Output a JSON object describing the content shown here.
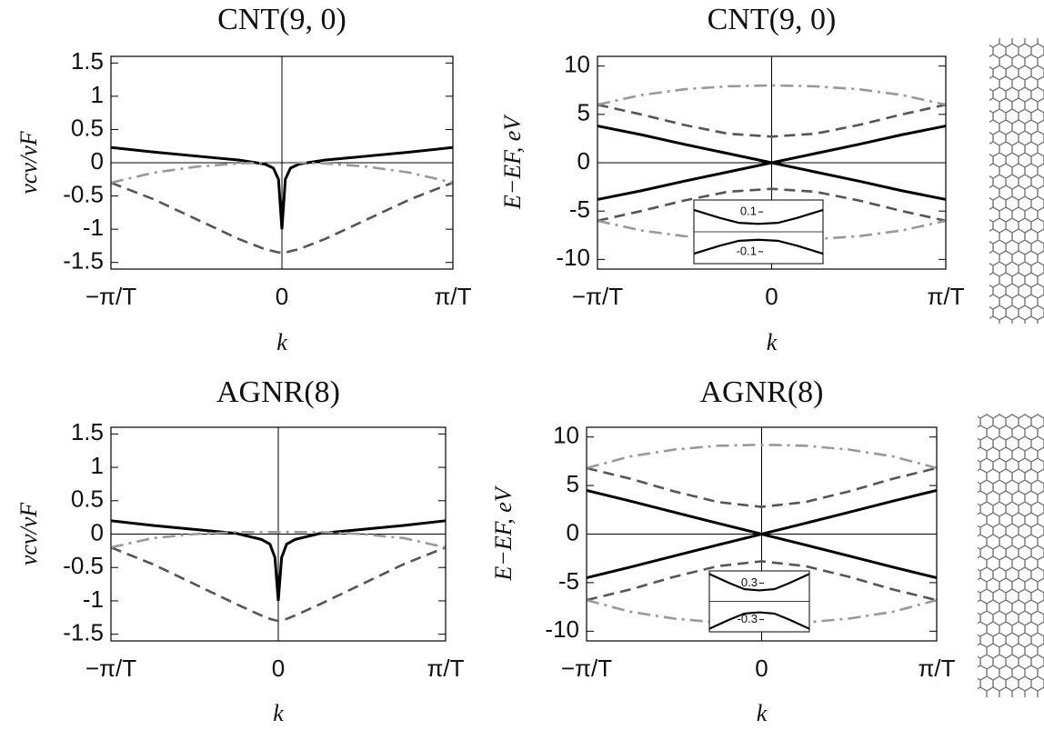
{
  "chart_data": [
    {
      "type": "line",
      "title": "CNT(9, 0)",
      "xlabel": "k",
      "ylabel": "vcv/vF",
      "xlim": [
        -1,
        1
      ],
      "xticks": [
        {
          "value": -1,
          "label": "−π/T"
        },
        0,
        {
          "value": 1,
          "label": "π/T"
        }
      ],
      "ylim": [
        -1.6,
        1.6
      ],
      "yticks": [
        -1.5,
        -1,
        -0.5,
        0,
        0.5,
        1,
        1.5
      ],
      "x": [
        -1,
        -0.75,
        -0.5,
        -0.25,
        -0.1,
        -0.05,
        -0.02,
        0,
        0.02,
        0.05,
        0.1,
        0.25,
        0.5,
        0.75,
        1
      ],
      "series": [
        {
          "color": "#000000",
          "dash": "solid",
          "values": [
            0.23,
            0.16,
            0.1,
            0.04,
            -0.02,
            -0.08,
            -0.25,
            -1,
            -0.25,
            -0.08,
            -0.02,
            0.04,
            0.1,
            0.16,
            0.23
          ]
        },
        {
          "color": "#555555",
          "dash": "dashed",
          "values": [
            -0.3,
            -0.55,
            -0.85,
            -1.15,
            -1.3,
            -1.33,
            -1.35,
            -1.35,
            -1.35,
            -1.33,
            -1.3,
            -1.15,
            -0.85,
            -0.55,
            -0.3
          ]
        },
        {
          "color": "#999999",
          "dash": "dashdot",
          "values": [
            -0.3,
            -0.15,
            -0.06,
            -0.01,
            0,
            0,
            0,
            0,
            0,
            0,
            0,
            -0.01,
            -0.06,
            -0.15,
            -0.3
          ]
        }
      ]
    },
    {
      "type": "line",
      "title": "CNT(9, 0)",
      "xlabel": "k",
      "ylabel": "E−EF, eV",
      "xlim": [
        -1,
        1
      ],
      "xticks": [
        {
          "value": -1,
          "label": "−π/T"
        },
        0,
        {
          "value": 1,
          "label": "π/T"
        }
      ],
      "ylim": [
        -11,
        11
      ],
      "yticks": [
        -10,
        -5,
        0,
        5,
        10
      ],
      "x": [
        -1,
        -0.75,
        -0.5,
        -0.25,
        0,
        0.25,
        0.5,
        0.75,
        1
      ],
      "series": [
        {
          "color": "#000000",
          "dash": "solid",
          "values": [
            3.8,
            2.9,
            1.9,
            0.95,
            0,
            0.95,
            1.9,
            2.9,
            3.8
          ]
        },
        {
          "color": "#000000",
          "dash": "solid",
          "values": [
            -3.8,
            -2.9,
            -1.9,
            -0.95,
            0,
            -0.95,
            -1.9,
            -2.9,
            -3.8
          ]
        },
        {
          "color": "#555555",
          "dash": "dashed",
          "values": [
            6,
            5,
            3.9,
            3,
            2.7,
            3,
            3.9,
            5,
            6
          ]
        },
        {
          "color": "#555555",
          "dash": "dashed",
          "values": [
            -6,
            -5,
            -3.9,
            -3,
            -2.7,
            -3,
            -3.9,
            -5,
            -6
          ]
        },
        {
          "color": "#999999",
          "dash": "dashdot",
          "values": [
            6,
            7,
            7.6,
            7.9,
            8,
            7.9,
            7.6,
            7,
            6
          ]
        },
        {
          "color": "#999999",
          "dash": "dashdot",
          "values": [
            -6,
            -7,
            -7.6,
            -7.9,
            -8,
            -7.9,
            -7.6,
            -7,
            -6
          ]
        }
      ],
      "inset": {
        "xlim": [
          -1,
          1
        ],
        "ylim": [
          -0.16,
          0.16
        ],
        "yticks": [
          -0.1,
          0.1
        ],
        "x": [
          -1,
          -0.6,
          -0.3,
          0,
          0.3,
          0.6,
          1
        ],
        "series": [
          {
            "color": "#000000",
            "values": [
              0.11,
              0.07,
              0.045,
              0.04,
              0.045,
              0.07,
              0.11
            ]
          },
          {
            "color": "#000000",
            "values": [
              -0.11,
              -0.07,
              -0.045,
              -0.04,
              -0.045,
              -0.07,
              -0.11
            ]
          }
        ]
      }
    },
    {
      "type": "line",
      "title": "AGNR(8)",
      "xlabel": "k",
      "ylabel": "vcv/vF",
      "xlim": [
        -1,
        1
      ],
      "xticks": [
        {
          "value": -1,
          "label": "−π/T"
        },
        0,
        {
          "value": 1,
          "label": "π/T"
        }
      ],
      "ylim": [
        -1.6,
        1.6
      ],
      "yticks": [
        -1.5,
        -1,
        -0.5,
        0,
        0.5,
        1,
        1.5
      ],
      "x": [
        -1,
        -0.75,
        -0.5,
        -0.25,
        -0.1,
        -0.05,
        -0.02,
        0,
        0.02,
        0.05,
        0.1,
        0.25,
        0.5,
        0.75,
        1
      ],
      "series": [
        {
          "color": "#000000",
          "dash": "solid",
          "values": [
            0.2,
            0.13,
            0.07,
            0.01,
            -0.08,
            -0.15,
            -0.35,
            -1,
            -0.35,
            -0.15,
            -0.08,
            0.01,
            0.07,
            0.13,
            0.2
          ]
        },
        {
          "color": "#555555",
          "dash": "dashed",
          "values": [
            -0.2,
            -0.45,
            -0.75,
            -1.05,
            -1.22,
            -1.27,
            -1.29,
            -1.3,
            -1.29,
            -1.27,
            -1.22,
            -1.05,
            -0.75,
            -0.45,
            -0.2
          ]
        },
        {
          "color": "#999999",
          "dash": "dashdot",
          "values": [
            -0.2,
            -0.06,
            0,
            0.03,
            0.03,
            0.03,
            0.03,
            0.03,
            0.03,
            0.03,
            0.03,
            0.03,
            0,
            -0.06,
            -0.2
          ]
        }
      ]
    },
    {
      "type": "line",
      "title": "AGNR(8)",
      "xlabel": "k",
      "ylabel": "E−EF, eV",
      "xlim": [
        -1,
        1
      ],
      "xticks": [
        {
          "value": -1,
          "label": "−π/T"
        },
        0,
        {
          "value": 1,
          "label": "π/T"
        }
      ],
      "ylim": [
        -11,
        11
      ],
      "yticks": [
        -10,
        -5,
        0,
        5,
        10
      ],
      "x": [
        -1,
        -0.75,
        -0.5,
        -0.25,
        0,
        0.25,
        0.5,
        0.75,
        1
      ],
      "series": [
        {
          "color": "#000000",
          "dash": "solid",
          "values": [
            4.5,
            3.4,
            2.25,
            1.12,
            0,
            1.12,
            2.25,
            3.4,
            4.5
          ]
        },
        {
          "color": "#000000",
          "dash": "solid",
          "values": [
            -4.5,
            -3.4,
            -2.25,
            -1.12,
            0,
            -1.12,
            -2.25,
            -3.4,
            -4.5
          ]
        },
        {
          "color": "#555555",
          "dash": "dashed",
          "values": [
            6.8,
            5.7,
            4.4,
            3.3,
            2.8,
            3.3,
            4.4,
            5.7,
            6.8
          ]
        },
        {
          "color": "#555555",
          "dash": "dashed",
          "values": [
            -6.8,
            -5.7,
            -4.4,
            -3.3,
            -2.8,
            -3.3,
            -4.4,
            -5.7,
            -6.8
          ]
        },
        {
          "color": "#999999",
          "dash": "dashdot",
          "values": [
            6.8,
            8,
            8.7,
            9.1,
            9.2,
            9.1,
            8.7,
            8,
            6.8
          ]
        },
        {
          "color": "#999999",
          "dash": "dashdot",
          "values": [
            -6.8,
            -8,
            -8.7,
            -9.1,
            -9.2,
            -9.1,
            -8.7,
            -8,
            -6.8
          ]
        }
      ],
      "inset": {
        "xlim": [
          -1,
          1
        ],
        "ylim": [
          -0.5,
          0.5
        ],
        "yticks": [
          -0.3,
          0.3
        ],
        "x": [
          -1,
          -0.6,
          -0.3,
          0,
          0.3,
          0.6,
          1
        ],
        "series": [
          {
            "color": "#000000",
            "values": [
              0.45,
              0.3,
              0.2,
              0.18,
              0.2,
              0.3,
              0.45
            ]
          },
          {
            "color": "#000000",
            "values": [
              -0.45,
              -0.3,
              -0.2,
              -0.18,
              -0.2,
              -0.3,
              -0.45
            ]
          }
        ]
      }
    }
  ]
}
